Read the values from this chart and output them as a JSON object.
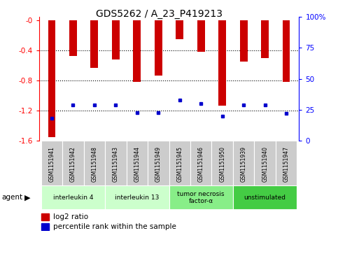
{
  "title": "GDS5262 / A_23_P419213",
  "samples": [
    "GSM1151941",
    "GSM1151942",
    "GSM1151948",
    "GSM1151943",
    "GSM1151944",
    "GSM1151949",
    "GSM1151945",
    "GSM1151946",
    "GSM1151950",
    "GSM1151939",
    "GSM1151940",
    "GSM1151947"
  ],
  "log2_ratio": [
    -1.55,
    -0.47,
    -0.63,
    -0.52,
    -0.82,
    -0.73,
    -0.25,
    -0.42,
    -1.13,
    -0.55,
    -0.5,
    -0.82
  ],
  "percentile_rank": [
    18,
    29,
    29,
    29,
    23,
    23,
    33,
    30,
    20,
    29,
    29,
    22
  ],
  "groups": [
    {
      "label": "interleukin 4",
      "start": 0,
      "end": 2,
      "color": "#ccffcc"
    },
    {
      "label": "interleukin 13",
      "start": 3,
      "end": 5,
      "color": "#ccffcc"
    },
    {
      "label": "tumor necrosis\nfactor-α",
      "start": 6,
      "end": 8,
      "color": "#88ee88"
    },
    {
      "label": "unstimulated",
      "start": 9,
      "end": 11,
      "color": "#44cc44"
    }
  ],
  "ylim_left": [
    -1.6,
    0.05
  ],
  "ylim_right": [
    0,
    100
  ],
  "bar_color": "#cc0000",
  "dot_color": "#0000cc",
  "bg_color": "#ffffff",
  "sample_bg": "#cccccc",
  "group_colors": [
    "#ccffcc",
    "#ccffcc",
    "#88ee88",
    "#44cc44"
  ]
}
